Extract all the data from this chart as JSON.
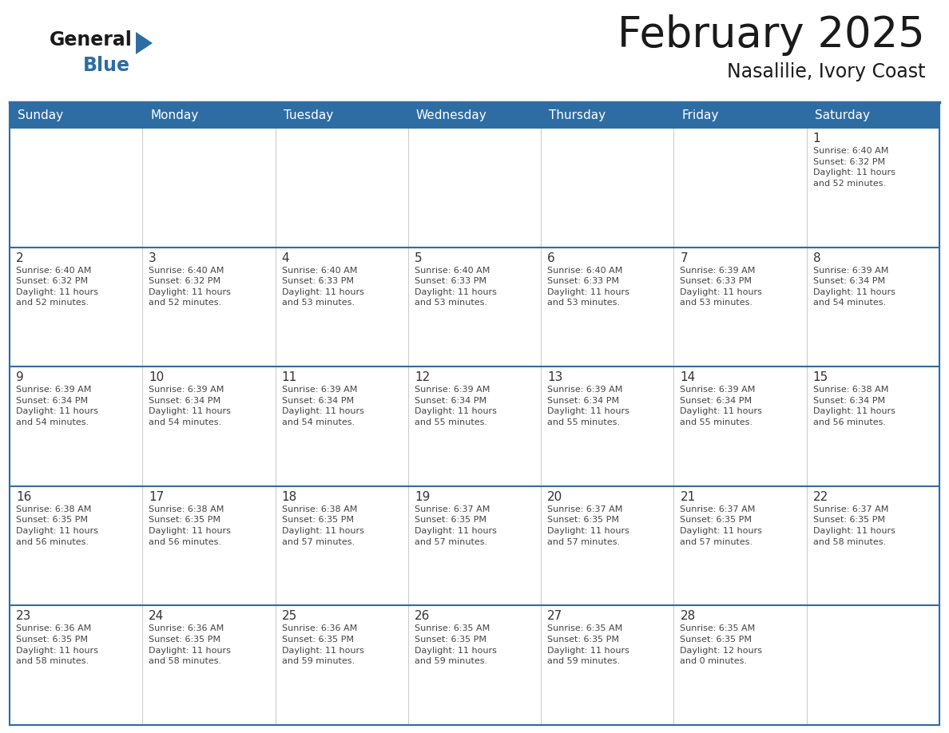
{
  "title": "February 2025",
  "subtitle": "Nasalilie, Ivory Coast",
  "header_bg": "#2E6DA4",
  "header_text": "#FFFFFF",
  "cell_bg": "#FFFFFF",
  "grid_line_color": "#2E6DA4",
  "text_color": "#333333",
  "day_headers": [
    "Sunday",
    "Monday",
    "Tuesday",
    "Wednesday",
    "Thursday",
    "Friday",
    "Saturday"
  ],
  "weeks": [
    [
      {
        "day": "",
        "info": ""
      },
      {
        "day": "",
        "info": ""
      },
      {
        "day": "",
        "info": ""
      },
      {
        "day": "",
        "info": ""
      },
      {
        "day": "",
        "info": ""
      },
      {
        "day": "",
        "info": ""
      },
      {
        "day": "1",
        "info": "Sunrise: 6:40 AM\nSunset: 6:32 PM\nDaylight: 11 hours\nand 52 minutes."
      }
    ],
    [
      {
        "day": "2",
        "info": "Sunrise: 6:40 AM\nSunset: 6:32 PM\nDaylight: 11 hours\nand 52 minutes."
      },
      {
        "day": "3",
        "info": "Sunrise: 6:40 AM\nSunset: 6:32 PM\nDaylight: 11 hours\nand 52 minutes."
      },
      {
        "day": "4",
        "info": "Sunrise: 6:40 AM\nSunset: 6:33 PM\nDaylight: 11 hours\nand 53 minutes."
      },
      {
        "day": "5",
        "info": "Sunrise: 6:40 AM\nSunset: 6:33 PM\nDaylight: 11 hours\nand 53 minutes."
      },
      {
        "day": "6",
        "info": "Sunrise: 6:40 AM\nSunset: 6:33 PM\nDaylight: 11 hours\nand 53 minutes."
      },
      {
        "day": "7",
        "info": "Sunrise: 6:39 AM\nSunset: 6:33 PM\nDaylight: 11 hours\nand 53 minutes."
      },
      {
        "day": "8",
        "info": "Sunrise: 6:39 AM\nSunset: 6:34 PM\nDaylight: 11 hours\nand 54 minutes."
      }
    ],
    [
      {
        "day": "9",
        "info": "Sunrise: 6:39 AM\nSunset: 6:34 PM\nDaylight: 11 hours\nand 54 minutes."
      },
      {
        "day": "10",
        "info": "Sunrise: 6:39 AM\nSunset: 6:34 PM\nDaylight: 11 hours\nand 54 minutes."
      },
      {
        "day": "11",
        "info": "Sunrise: 6:39 AM\nSunset: 6:34 PM\nDaylight: 11 hours\nand 54 minutes."
      },
      {
        "day": "12",
        "info": "Sunrise: 6:39 AM\nSunset: 6:34 PM\nDaylight: 11 hours\nand 55 minutes."
      },
      {
        "day": "13",
        "info": "Sunrise: 6:39 AM\nSunset: 6:34 PM\nDaylight: 11 hours\nand 55 minutes."
      },
      {
        "day": "14",
        "info": "Sunrise: 6:39 AM\nSunset: 6:34 PM\nDaylight: 11 hours\nand 55 minutes."
      },
      {
        "day": "15",
        "info": "Sunrise: 6:38 AM\nSunset: 6:34 PM\nDaylight: 11 hours\nand 56 minutes."
      }
    ],
    [
      {
        "day": "16",
        "info": "Sunrise: 6:38 AM\nSunset: 6:35 PM\nDaylight: 11 hours\nand 56 minutes."
      },
      {
        "day": "17",
        "info": "Sunrise: 6:38 AM\nSunset: 6:35 PM\nDaylight: 11 hours\nand 56 minutes."
      },
      {
        "day": "18",
        "info": "Sunrise: 6:38 AM\nSunset: 6:35 PM\nDaylight: 11 hours\nand 57 minutes."
      },
      {
        "day": "19",
        "info": "Sunrise: 6:37 AM\nSunset: 6:35 PM\nDaylight: 11 hours\nand 57 minutes."
      },
      {
        "day": "20",
        "info": "Sunrise: 6:37 AM\nSunset: 6:35 PM\nDaylight: 11 hours\nand 57 minutes."
      },
      {
        "day": "21",
        "info": "Sunrise: 6:37 AM\nSunset: 6:35 PM\nDaylight: 11 hours\nand 57 minutes."
      },
      {
        "day": "22",
        "info": "Sunrise: 6:37 AM\nSunset: 6:35 PM\nDaylight: 11 hours\nand 58 minutes."
      }
    ],
    [
      {
        "day": "23",
        "info": "Sunrise: 6:36 AM\nSunset: 6:35 PM\nDaylight: 11 hours\nand 58 minutes."
      },
      {
        "day": "24",
        "info": "Sunrise: 6:36 AM\nSunset: 6:35 PM\nDaylight: 11 hours\nand 58 minutes."
      },
      {
        "day": "25",
        "info": "Sunrise: 6:36 AM\nSunset: 6:35 PM\nDaylight: 11 hours\nand 59 minutes."
      },
      {
        "day": "26",
        "info": "Sunrise: 6:35 AM\nSunset: 6:35 PM\nDaylight: 11 hours\nand 59 minutes."
      },
      {
        "day": "27",
        "info": "Sunrise: 6:35 AM\nSunset: 6:35 PM\nDaylight: 11 hours\nand 59 minutes."
      },
      {
        "day": "28",
        "info": "Sunrise: 6:35 AM\nSunset: 6:35 PM\nDaylight: 12 hours\nand 0 minutes."
      },
      {
        "day": "",
        "info": ""
      }
    ]
  ],
  "fig_width": 11.88,
  "fig_height": 9.18,
  "dpi": 100
}
